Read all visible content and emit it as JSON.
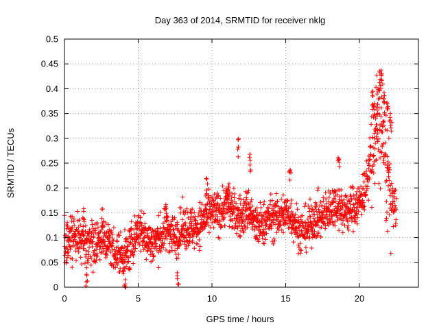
{
  "chart_data": {
    "type": "scatter",
    "title": "Day 363 of 2014, SRMTID for receiver nklg",
    "xlabel": "GPS time / hours",
    "ylabel": "SRMTID / TECUs",
    "xlim": [
      0,
      24
    ],
    "ylim": [
      0,
      0.5
    ],
    "xticks": [
      0,
      5,
      10,
      15,
      20
    ],
    "xtick_labels": [
      "0",
      "5",
      "10",
      "15",
      "20"
    ],
    "yticks": [
      0,
      0.05,
      0.1,
      0.15,
      0.2,
      0.25,
      0.3,
      0.35,
      0.4,
      0.45,
      0.5
    ],
    "ytick_labels": [
      "0",
      "0.05",
      "0.1",
      "0.15",
      "0.2",
      "0.25",
      "0.3",
      "0.35",
      "0.4",
      "0.45",
      "0.5"
    ],
    "grid": true,
    "marker": "+",
    "color": "#ff0000",
    "series": [
      {
        "name": "SRMTID",
        "trend": [
          [
            0.0,
            0.09
          ],
          [
            0.5,
            0.1
          ],
          [
            1.0,
            0.1
          ],
          [
            1.5,
            0.09
          ],
          [
            2.0,
            0.09
          ],
          [
            2.5,
            0.1
          ],
          [
            3.0,
            0.09
          ],
          [
            3.5,
            0.07
          ],
          [
            4.0,
            0.06
          ],
          [
            4.5,
            0.08
          ],
          [
            5.0,
            0.12
          ],
          [
            5.5,
            0.1
          ],
          [
            6.0,
            0.09
          ],
          [
            6.5,
            0.1
          ],
          [
            7.0,
            0.12
          ],
          [
            7.5,
            0.1
          ],
          [
            8.0,
            0.12
          ],
          [
            8.5,
            0.12
          ],
          [
            9.0,
            0.12
          ],
          [
            9.5,
            0.14
          ],
          [
            10.0,
            0.15
          ],
          [
            10.5,
            0.15
          ],
          [
            11.0,
            0.17
          ],
          [
            11.5,
            0.15
          ],
          [
            12.0,
            0.14
          ],
          [
            12.5,
            0.16
          ],
          [
            13.0,
            0.12
          ],
          [
            13.5,
            0.13
          ],
          [
            14.0,
            0.14
          ],
          [
            14.5,
            0.14
          ],
          [
            15.0,
            0.15
          ],
          [
            15.5,
            0.14
          ],
          [
            16.0,
            0.11
          ],
          [
            16.5,
            0.12
          ],
          [
            17.0,
            0.14
          ],
          [
            17.5,
            0.14
          ],
          [
            18.0,
            0.16
          ],
          [
            18.5,
            0.17
          ],
          [
            19.0,
            0.15
          ],
          [
            19.5,
            0.16
          ],
          [
            20.0,
            0.17
          ],
          [
            20.5,
            0.21
          ],
          [
            21.0,
            0.3
          ],
          [
            21.5,
            0.33
          ],
          [
            22.0,
            0.2
          ],
          [
            22.5,
            0.15
          ]
        ],
        "spikes": [
          [
            20.9,
            0.4
          ],
          [
            21.0,
            0.38
          ],
          [
            21.2,
            0.35
          ],
          [
            21.4,
            0.44
          ],
          [
            21.5,
            0.455
          ],
          [
            21.7,
            0.41
          ],
          [
            21.9,
            0.39
          ],
          [
            22.1,
            0.36
          ],
          [
            11.8,
            0.3
          ],
          [
            12.6,
            0.27
          ],
          [
            15.3,
            0.24
          ],
          [
            18.6,
            0.27
          ],
          [
            9.6,
            0.22
          ],
          [
            11.1,
            0.21
          ],
          [
            1.3,
            0.165
          ],
          [
            2.6,
            0.16
          ],
          [
            6.9,
            0.17
          ],
          [
            4.1,
            0.03
          ],
          [
            7.7,
            0.04
          ],
          [
            1.5,
            0.04
          ]
        ],
        "point_count": 2000
      }
    ]
  }
}
